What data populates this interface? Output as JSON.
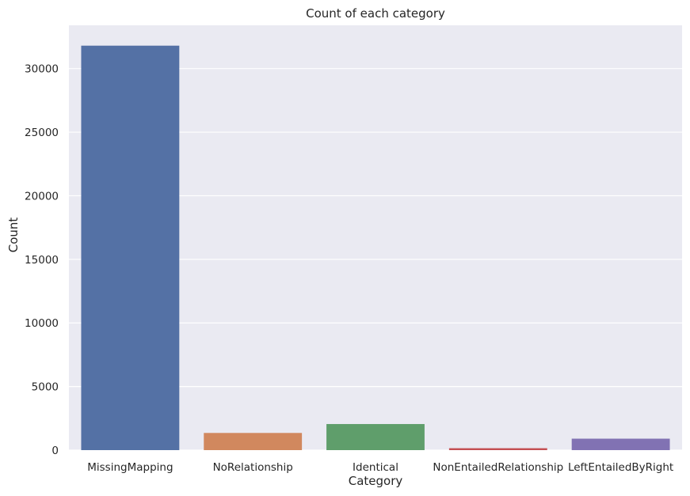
{
  "chart_data": {
    "type": "bar",
    "title": "Count of each category",
    "xlabel": "Category",
    "ylabel": "Count",
    "categories": [
      "MissingMapping",
      "NoRelationship",
      "Identical",
      "NonEntailedRelationship",
      "LeftEntailedByRight"
    ],
    "values": [
      31800,
      1350,
      2050,
      150,
      900
    ],
    "colors": [
      "#5471a5",
      "#d1885e",
      "#5f9e6b",
      "#c44e52",
      "#8172b3"
    ],
    "yticks": [
      0,
      5000,
      10000,
      15000,
      20000,
      25000,
      30000
    ],
    "ytick_labels": [
      "0",
      "5000",
      "10000",
      "15000",
      "20000",
      "25000",
      "30000"
    ],
    "ylim": [
      0,
      33400
    ],
    "grid": true,
    "legend": "none",
    "background": "#eaeaf2",
    "grid_color": "#ffffff"
  }
}
